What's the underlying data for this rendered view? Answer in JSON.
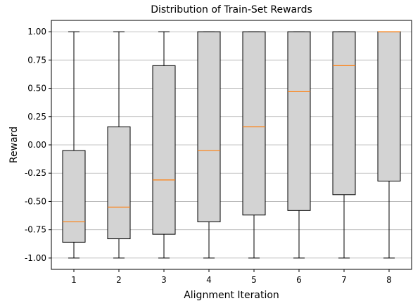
{
  "chart_data": {
    "type": "box",
    "title": "Distribution of Train-Set Rewards",
    "xlabel": "Alignment Iteration",
    "ylabel": "Reward",
    "ylim": [
      -1.1,
      1.1
    ],
    "yticks": [
      "1.00",
      "0.75",
      "0.50",
      "0.25",
      "0.00",
      "-0.25",
      "-0.50",
      "-0.75",
      "-1.00"
    ],
    "ytick_values": [
      1.0,
      0.75,
      0.5,
      0.25,
      0.0,
      -0.25,
      -0.5,
      -0.75,
      -1.0
    ],
    "categories": [
      "1",
      "2",
      "3",
      "4",
      "5",
      "6",
      "7",
      "8"
    ],
    "grid": "horizontal",
    "colors": {
      "box_fill": "#d3d3d3",
      "median": "#ff7f0e",
      "grid": "#b0b0b0"
    },
    "boxes": [
      {
        "whislo": -1.0,
        "q1": -0.86,
        "med": -0.68,
        "q3": -0.05,
        "whishi": 1.0
      },
      {
        "whislo": -1.0,
        "q1": -0.83,
        "med": -0.55,
        "q3": 0.16,
        "whishi": 1.0
      },
      {
        "whislo": -1.0,
        "q1": -0.79,
        "med": -0.31,
        "q3": 0.7,
        "whishi": 1.0
      },
      {
        "whislo": -1.0,
        "q1": -0.68,
        "med": -0.05,
        "q3": 1.0,
        "whishi": 1.0
      },
      {
        "whislo": -1.0,
        "q1": -0.62,
        "med": 0.16,
        "q3": 1.0,
        "whishi": 1.0
      },
      {
        "whislo": -1.0,
        "q1": -0.58,
        "med": 0.47,
        "q3": 1.0,
        "whishi": 1.0
      },
      {
        "whislo": -1.0,
        "q1": -0.44,
        "med": 0.7,
        "q3": 1.0,
        "whishi": 1.0
      },
      {
        "whislo": -1.0,
        "q1": -0.32,
        "med": 1.0,
        "q3": 1.0,
        "whishi": 1.0
      }
    ]
  }
}
